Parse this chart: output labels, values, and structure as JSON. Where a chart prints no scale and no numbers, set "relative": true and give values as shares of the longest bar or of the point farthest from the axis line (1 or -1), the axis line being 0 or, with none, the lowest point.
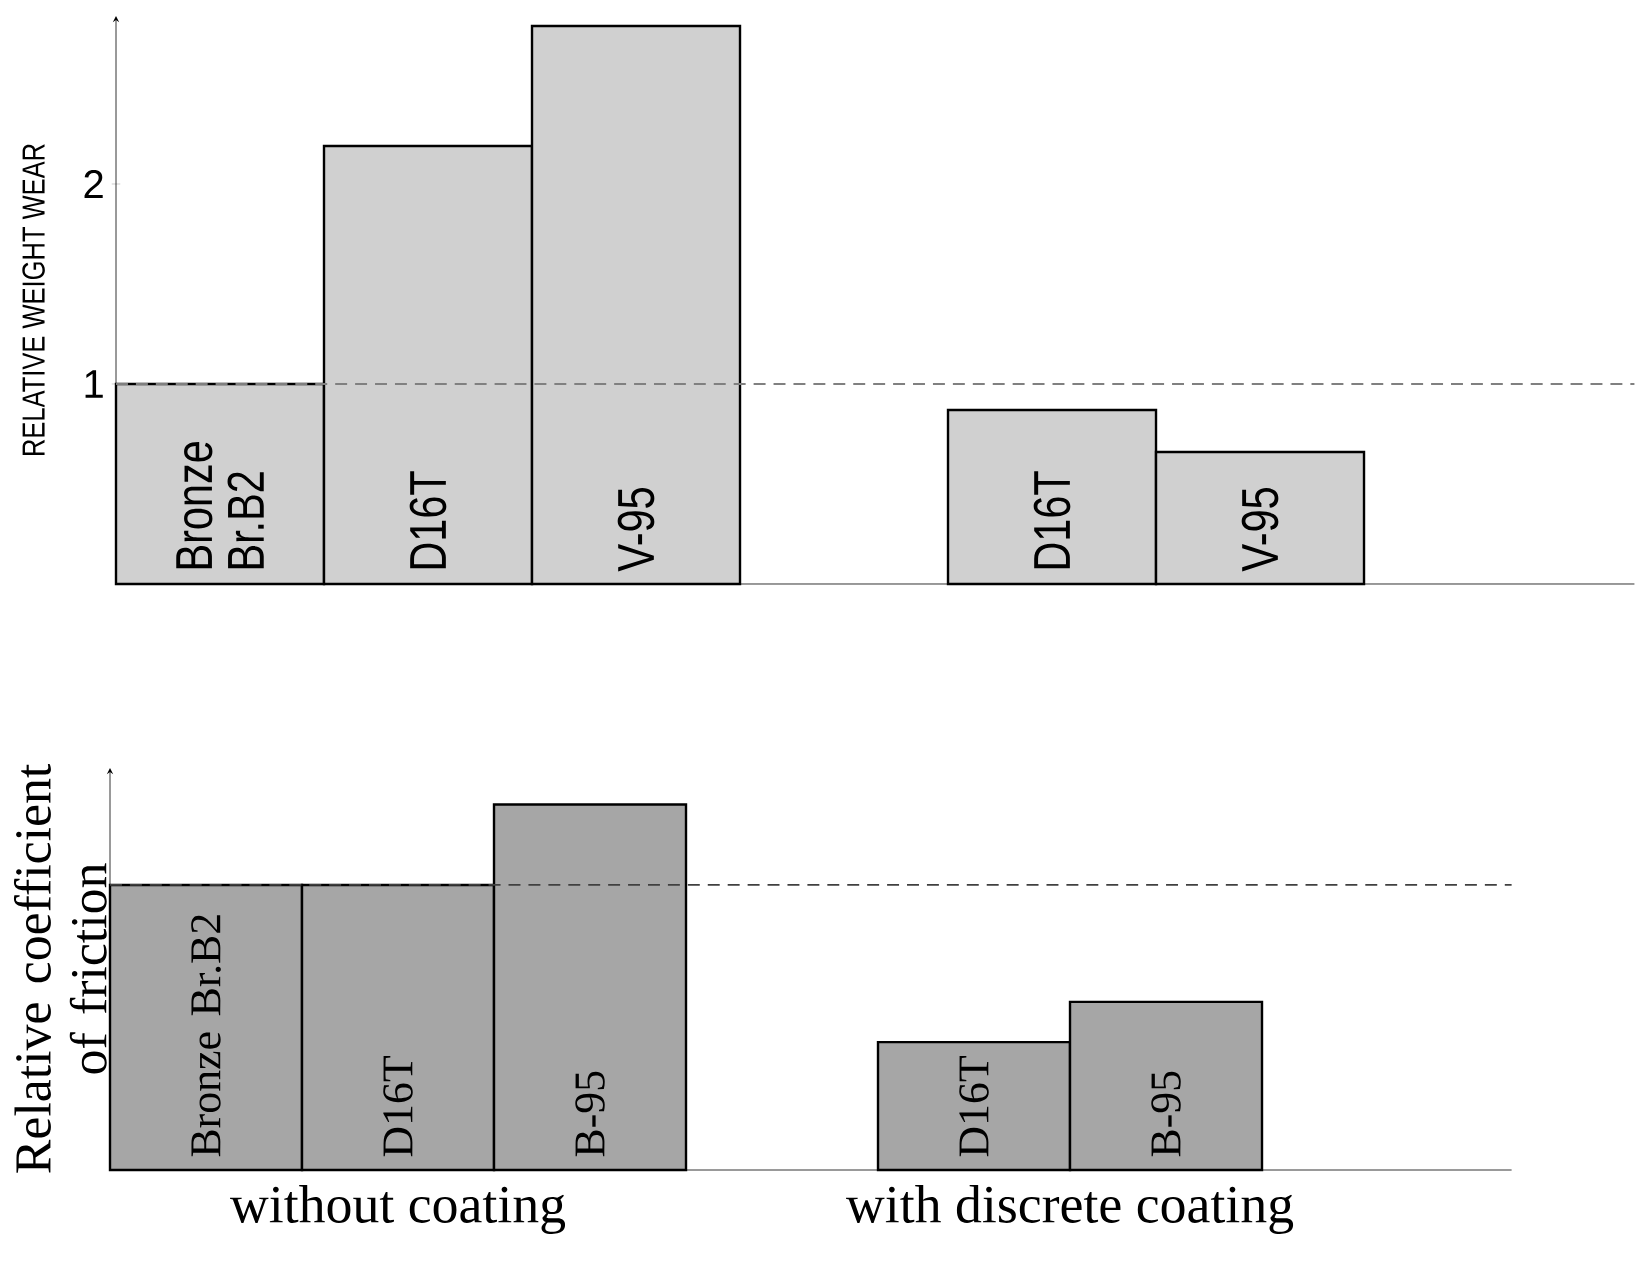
{
  "chart_data": [
    {
      "type": "bar",
      "ylabel": "RELATIVE WEIGHT WEAR",
      "categories": [
        "Bronze Br.B2",
        "D16T",
        "V-95",
        null,
        "D16T",
        "V-95"
      ],
      "values": [
        1.0,
        2.19,
        2.79,
        null,
        0.87,
        0.66
      ],
      "color": "#d0d0d0",
      "ylim": [
        0,
        2.84
      ],
      "yticks": [
        1,
        2
      ],
      "tick_labels": "y",
      "ref_lines": [
        {
          "axis": "y",
          "value": 1,
          "color": "#808080",
          "line_style": "dashed"
        }
      ]
    },
    {
      "type": "bar",
      "ylabel": "Relative coefficient of friction",
      "categories": [
        "Bronze Br.B2",
        "D16T",
        "B-95",
        null,
        "D16T",
        "B-95"
      ],
      "values": [
        0.78,
        0.78,
        1,
        null,
        0.35,
        0.46
      ],
      "color": "#a6a6a6",
      "relative": true,
      "tick_labels": false,
      "ref_lines": [
        {
          "axis": "y",
          "value": 0.78,
          "color": "#404040",
          "line_style": "dashed"
        }
      ],
      "annotations": [
        "without coating",
        "with discrete coating"
      ]
    }
  ]
}
